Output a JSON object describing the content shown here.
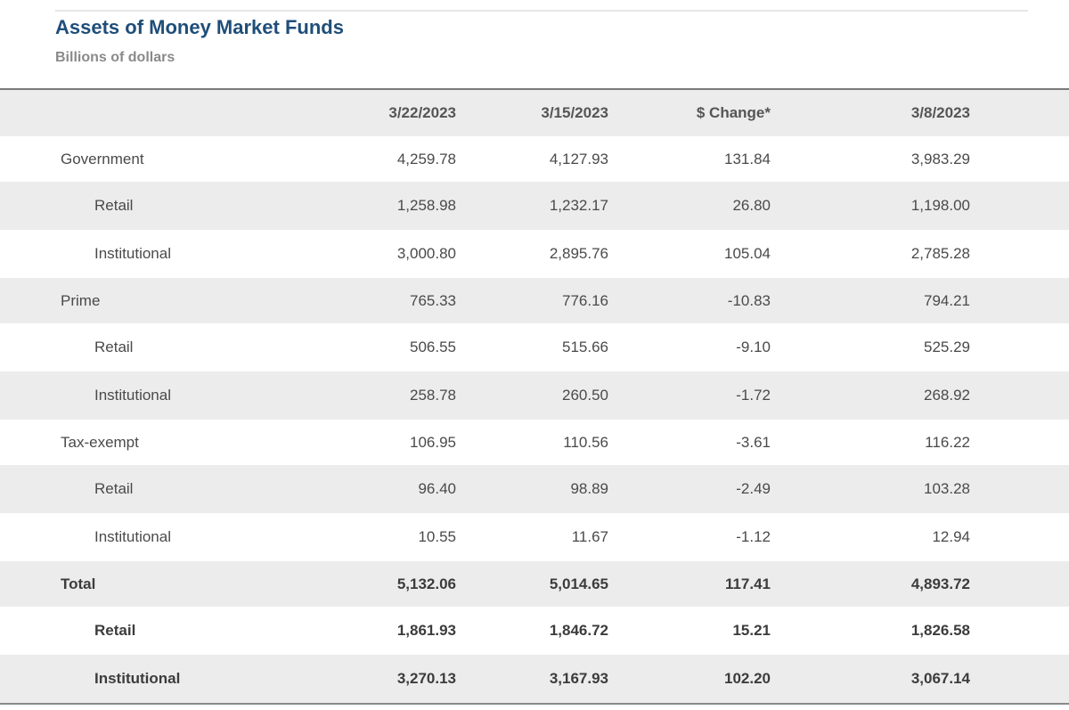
{
  "chart_data": {
    "type": "table",
    "title": "Assets of Money Market Funds",
    "subtitle": "Billions of dollars",
    "columns": [
      "",
      "3/22/2023",
      "3/15/2023",
      "$ Change*",
      "3/8/2023"
    ],
    "rows": [
      {
        "label": "Government",
        "indent": false,
        "bold": false,
        "values": [
          "4,259.78",
          "4,127.93",
          "131.84",
          "3,983.29"
        ]
      },
      {
        "label": "Retail",
        "indent": true,
        "bold": false,
        "values": [
          "1,258.98",
          "1,232.17",
          "26.80",
          "1,198.00"
        ]
      },
      {
        "label": "Institutional",
        "indent": true,
        "bold": false,
        "values": [
          "3,000.80",
          "2,895.76",
          "105.04",
          "2,785.28"
        ]
      },
      {
        "label": "Prime",
        "indent": false,
        "bold": false,
        "values": [
          "765.33",
          "776.16",
          "-10.83",
          "794.21"
        ]
      },
      {
        "label": "Retail",
        "indent": true,
        "bold": false,
        "values": [
          "506.55",
          "515.66",
          "-9.10",
          "525.29"
        ]
      },
      {
        "label": "Institutional",
        "indent": true,
        "bold": false,
        "values": [
          "258.78",
          "260.50",
          "-1.72",
          "268.92"
        ]
      },
      {
        "label": "Tax-exempt",
        "indent": false,
        "bold": false,
        "values": [
          "106.95",
          "110.56",
          "-3.61",
          "116.22"
        ]
      },
      {
        "label": "Retail",
        "indent": true,
        "bold": false,
        "values": [
          "96.40",
          "98.89",
          "-2.49",
          "103.28"
        ]
      },
      {
        "label": "Institutional",
        "indent": true,
        "bold": false,
        "values": [
          "10.55",
          "11.67",
          "-1.12",
          "12.94"
        ]
      },
      {
        "label": "Total",
        "indent": false,
        "bold": true,
        "values": [
          "5,132.06",
          "5,014.65",
          "117.41",
          "4,893.72"
        ]
      },
      {
        "label": "Retail",
        "indent": true,
        "bold": true,
        "values": [
          "1,861.93",
          "1,846.72",
          "15.21",
          "1,826.58"
        ]
      },
      {
        "label": "Institutional",
        "indent": true,
        "bold": true,
        "values": [
          "3,270.13",
          "3,167.93",
          "102.20",
          "3,067.14"
        ]
      }
    ]
  },
  "colors": {
    "title": "#1f4e79",
    "subtitle": "#8a8a8a",
    "shaded_row": "#ececec",
    "text": "#4a4a4a"
  }
}
